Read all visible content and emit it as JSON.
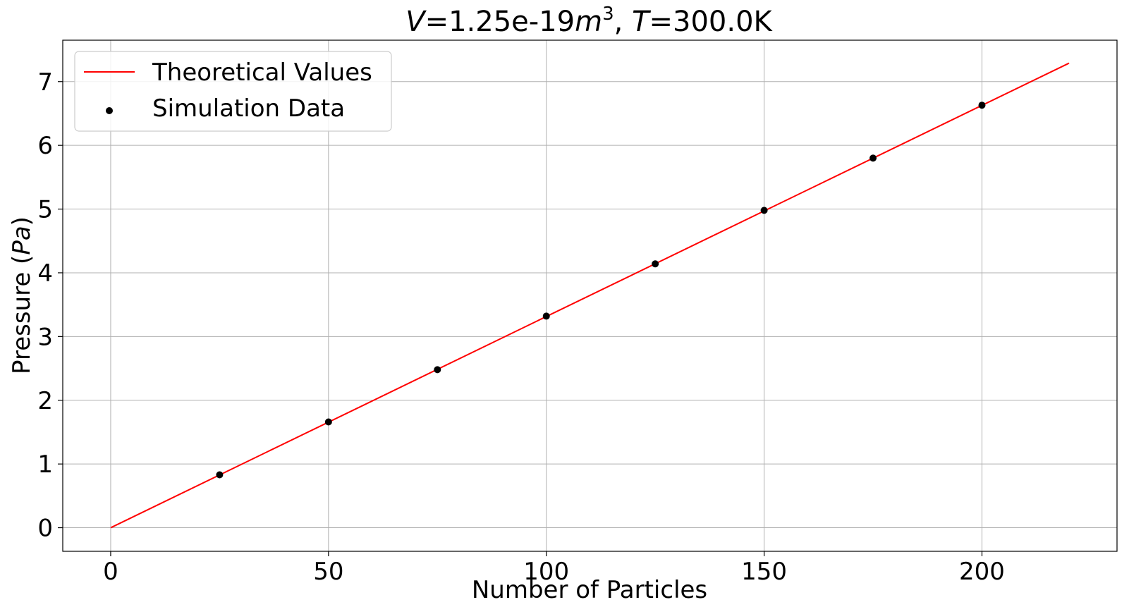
{
  "chart_data": {
    "type": "line",
    "title": {
      "v_symbol": "V",
      "v_value": "=1.25e-19",
      "m_symbol": "m",
      "m_exponent": "3",
      "separator": ", ",
      "t_symbol": "T",
      "t_value": "=300.0K"
    },
    "xlabel": "Number of Particles",
    "ylabel": {
      "prefix": "Pressure (",
      "unit": "Pa",
      "suffix": ")"
    },
    "xlim": [
      -11,
      231
    ],
    "ylim": [
      -0.37,
      7.65
    ],
    "x_ticks": [
      0,
      50,
      100,
      150,
      200
    ],
    "y_ticks": [
      0,
      1,
      2,
      3,
      4,
      5,
      6,
      7
    ],
    "grid": true,
    "legend_position": "top-left",
    "series": [
      {
        "name": "Theoretical Values",
        "kind": "line",
        "color": "#ff0000",
        "x": [
          0,
          220
        ],
        "y": [
          0,
          7.29
        ]
      },
      {
        "name": "Simulation Data",
        "kind": "scatter",
        "color": "#000000",
        "x": [
          25,
          50,
          75,
          100,
          125,
          150,
          175,
          200
        ],
        "y": [
          0.83,
          1.66,
          2.48,
          3.32,
          4.14,
          4.98,
          5.8,
          6.63
        ]
      }
    ]
  }
}
